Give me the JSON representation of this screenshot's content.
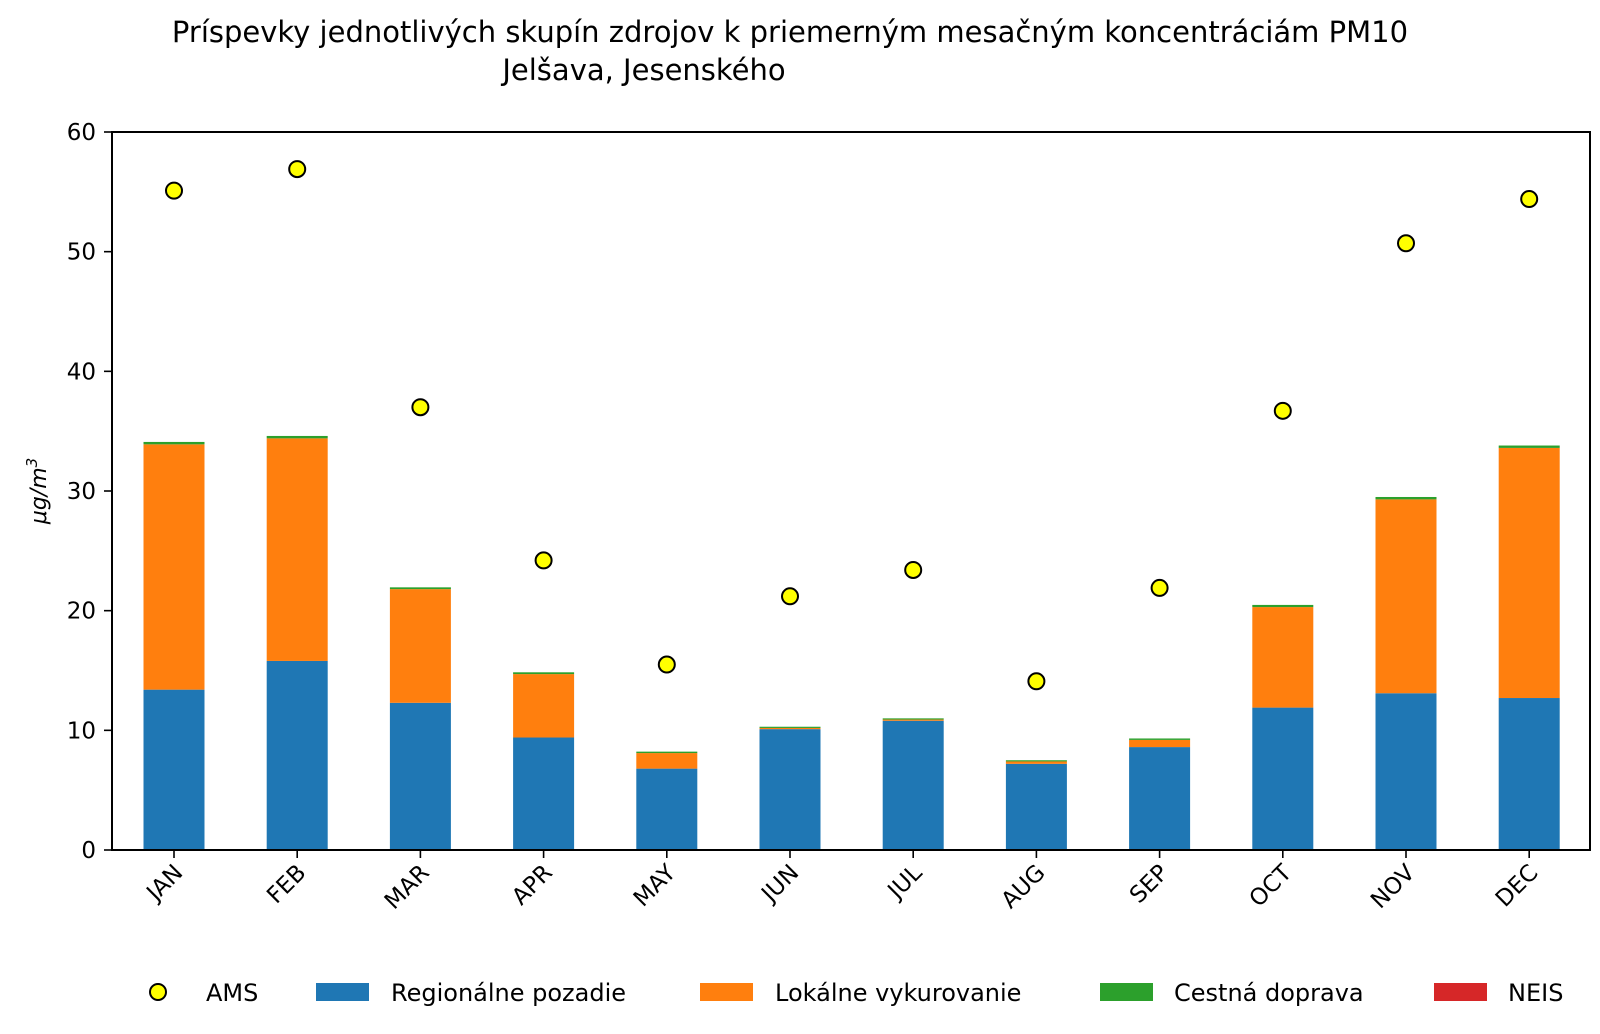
{
  "chart_data": {
    "type": "bar",
    "stacked": true,
    "title": "Príspevky jednotlivých skupín zdrojov k priemerným mesačným koncentráciám PM10",
    "subtitle": "Jelšava, Jesenského",
    "ylabel": "μg/m",
    "ylabel_superscript": "3",
    "xlabel": "",
    "ylim": [
      0,
      60
    ],
    "yticks": [
      0,
      10,
      20,
      30,
      40,
      50,
      60
    ],
    "categories": [
      "JAN",
      "FEB",
      "MAR",
      "APR",
      "MAY",
      "JUN",
      "JUL",
      "AUG",
      "SEP",
      "OCT",
      "NOV",
      "DEC"
    ],
    "series": [
      {
        "name": "Regionálne pozadie",
        "color": "#1f77b4",
        "values": [
          13.4,
          15.8,
          12.3,
          9.4,
          6.8,
          10.1,
          10.8,
          7.2,
          8.6,
          11.9,
          13.1,
          12.7
        ]
      },
      {
        "name": "Lokálne vykurovanie",
        "color": "#ff7f0e",
        "values": [
          20.5,
          18.6,
          9.5,
          5.3,
          1.3,
          0.1,
          0.1,
          0.2,
          0.6,
          8.4,
          16.2,
          20.9
        ]
      },
      {
        "name": "Cestná doprava",
        "color": "#2ca02c",
        "values": [
          0.2,
          0.2,
          0.15,
          0.15,
          0.12,
          0.1,
          0.1,
          0.1,
          0.12,
          0.18,
          0.2,
          0.2
        ]
      },
      {
        "name": "NEIS",
        "color": "#d62728",
        "values": [
          0,
          0,
          0,
          0,
          0,
          0,
          0,
          0,
          0,
          0,
          0,
          0
        ]
      }
    ],
    "scatter": {
      "name": "AMS",
      "color": "#ffff00",
      "edgecolor": "#000000",
      "values": [
        55.1,
        56.9,
        37.0,
        24.2,
        15.5,
        21.2,
        23.4,
        14.1,
        21.9,
        36.7,
        50.7,
        54.4
      ]
    },
    "legend": {
      "placement": "bottom",
      "order": [
        "AMS",
        "Regionálne pozadie",
        "Lokálne vykurovanie",
        "Cestná doprava",
        "NEIS"
      ]
    }
  }
}
